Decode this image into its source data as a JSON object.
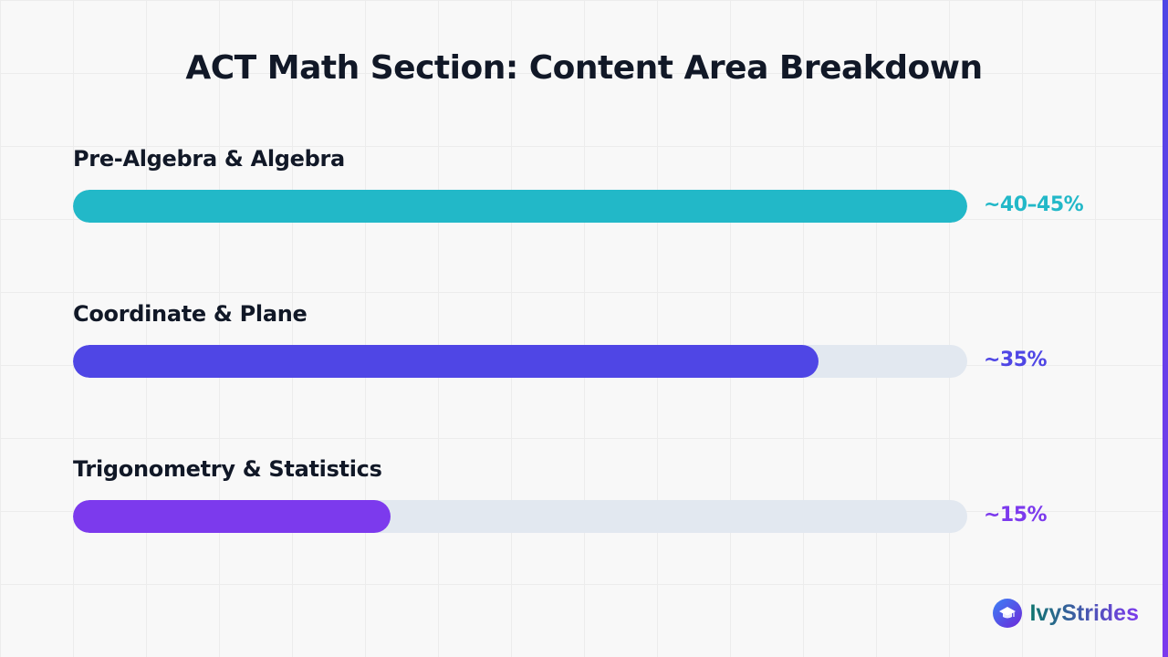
{
  "colors": {
    "title": "#111827",
    "track": "#e2e8f0",
    "pre_algebra": "#22b8c8",
    "coordinate": "#4f46e5",
    "trigonometry": "#7c3aed"
  },
  "chart_data": {
    "type": "bar",
    "orientation": "horizontal",
    "title": "ACT Math Section: Content Area Breakdown",
    "scale_max": 45,
    "categories": [
      "Pre-Algebra & Algebra",
      "Coordinate & Plane",
      "Trigonometry & Statistics"
    ],
    "values": [
      45,
      37.5,
      16
    ],
    "value_labels": [
      "~40–45%",
      "~35%",
      "~15%"
    ],
    "bar_colors": [
      "#22b8c8",
      "#4f46e5",
      "#7c3aed"
    ]
  },
  "brand": {
    "name": "IvyStrides",
    "icon": "graduation-cap-icon"
  }
}
